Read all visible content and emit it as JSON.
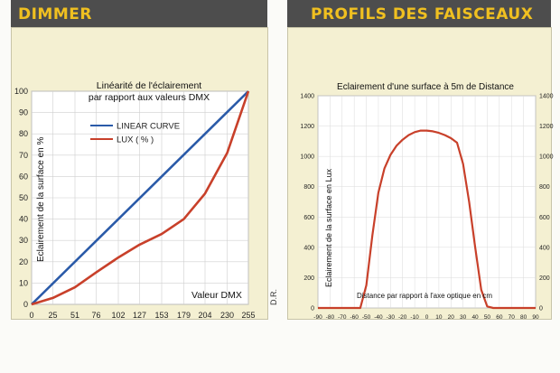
{
  "left_header": {
    "title": "DIMMER"
  },
  "right_header": {
    "title": "PROFILS DES FAISCEAUX"
  },
  "side_note": "D.R.",
  "chart_data": [
    {
      "type": "line",
      "title": "Linéarité de l'éclairement",
      "subtitle": "par rapport aux valeurs DMX",
      "xlabel": "Valeur DMX",
      "ylabel": "Eclairement de la surface en %",
      "xlim": [
        0,
        255
      ],
      "ylim": [
        0,
        100
      ],
      "xticks": [
        0,
        25,
        51,
        76,
        102,
        127,
        153,
        179,
        204,
        230,
        255
      ],
      "yticks": [
        0,
        10,
        20,
        30,
        40,
        50,
        60,
        70,
        80,
        90,
        100
      ],
      "grid": true,
      "legend_position": "upper-left",
      "series": [
        {
          "name": "LINEAR CURVE",
          "color": "#2a5aa8",
          "x": [
            0,
            255
          ],
          "y": [
            0,
            100
          ]
        },
        {
          "name": "LUX ( % )",
          "color": "#c8402a",
          "x": [
            0,
            25,
            51,
            76,
            102,
            127,
            153,
            179,
            204,
            230,
            255
          ],
          "y": [
            0,
            3,
            8,
            15,
            22,
            28,
            33,
            40,
            52,
            71,
            100
          ]
        }
      ]
    },
    {
      "type": "line",
      "title": "Eclairement d'une surface à 5m de Distance",
      "xlabel": "Distance par rapport à l'axe optique en cm",
      "ylabel": "Eclairement de la surface en Lux",
      "xlim": [
        -90,
        90
      ],
      "ylim": [
        0,
        1400
      ],
      "xticks": [
        -90,
        -80,
        -70,
        -60,
        -50,
        -40,
        -30,
        -20,
        -10,
        0,
        10,
        20,
        30,
        40,
        50,
        60,
        70,
        80,
        90
      ],
      "yticks": [
        0,
        200,
        400,
        600,
        800,
        1000,
        1200,
        1400
      ],
      "grid": true,
      "series": [
        {
          "color": "#c8402a",
          "x": [
            -90,
            -70,
            -55,
            -50,
            -45,
            -40,
            -35,
            -30,
            -25,
            -20,
            -15,
            -10,
            -5,
            0,
            5,
            10,
            15,
            20,
            25,
            30,
            35,
            40,
            45,
            50,
            55,
            70,
            90
          ],
          "y": [
            0,
            0,
            0,
            150,
            480,
            760,
            920,
            1010,
            1070,
            1110,
            1140,
            1160,
            1170,
            1170,
            1165,
            1155,
            1140,
            1120,
            1090,
            950,
            700,
            400,
            120,
            10,
            0,
            0,
            0
          ]
        }
      ]
    }
  ]
}
